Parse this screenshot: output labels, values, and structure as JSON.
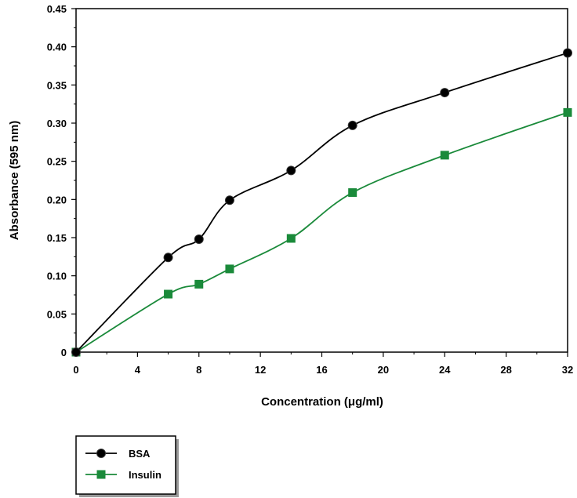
{
  "chart_data": {
    "type": "line",
    "title": "",
    "xlabel": "Concentration (μg/ml)",
    "ylabel": "Absorbance (595 nm)",
    "xlim": [
      0,
      32
    ],
    "ylim": [
      0,
      0.45
    ],
    "x_ticks": [
      "0",
      "4",
      "8",
      "12",
      "16",
      "20",
      "24",
      "28",
      "32"
    ],
    "y_ticks": [
      "0",
      "0.05",
      "0.10",
      "0.15",
      "0.20",
      "0.25",
      "0.30",
      "0.35",
      "0.40",
      "0.45"
    ],
    "grid": false,
    "legend_position": "bottom-left",
    "series": [
      {
        "name": "BSA",
        "color": "#000000",
        "marker": "circle",
        "x": [
          0,
          6,
          8,
          10,
          14,
          18,
          24,
          32
        ],
        "y": [
          0.0,
          0.124,
          0.148,
          0.199,
          0.238,
          0.297,
          0.34,
          0.392
        ]
      },
      {
        "name": "Insulin",
        "color": "#1a8a3a",
        "marker": "square",
        "x": [
          0,
          6,
          8,
          10,
          14,
          18,
          24,
          32
        ],
        "y": [
          0.0,
          0.076,
          0.089,
          0.109,
          0.149,
          0.209,
          0.258,
          0.314
        ]
      }
    ]
  }
}
